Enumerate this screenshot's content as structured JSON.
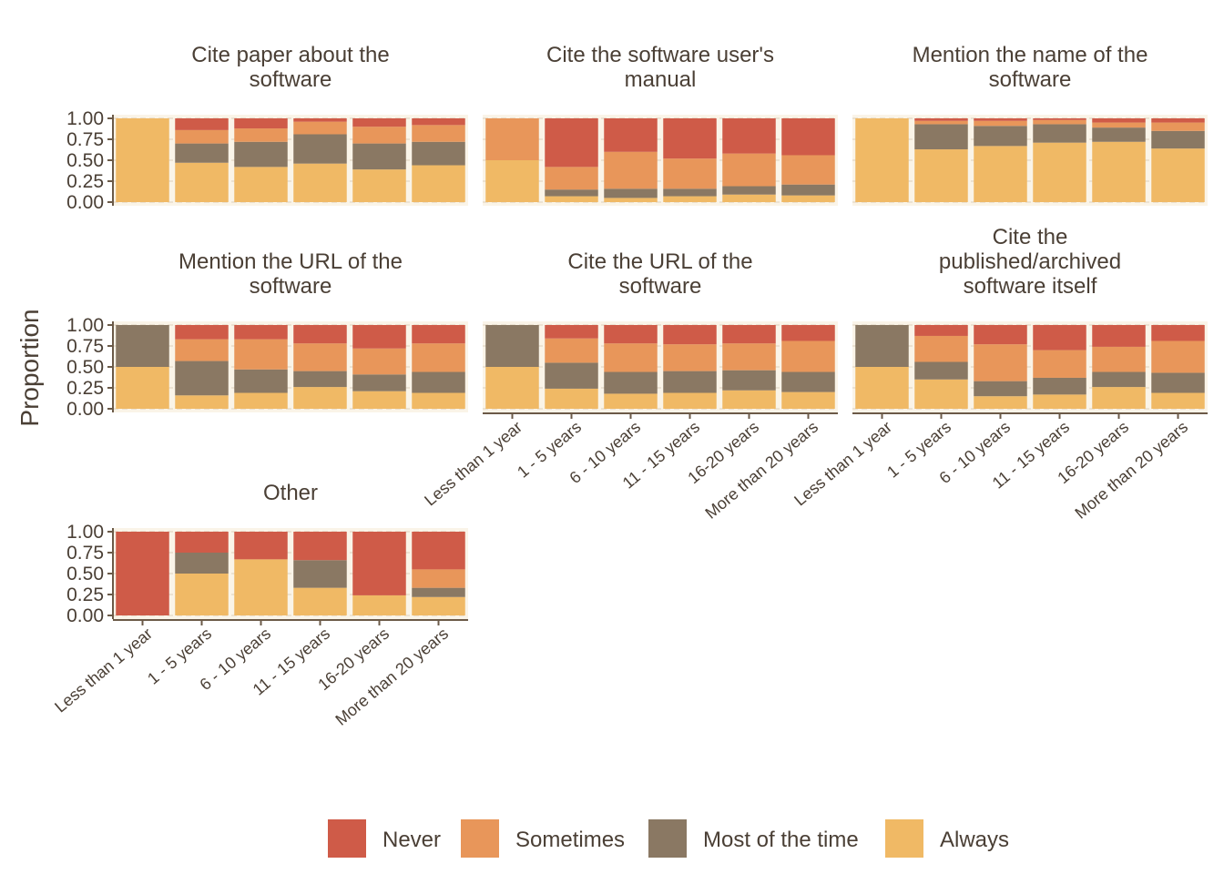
{
  "chart_data": {
    "type": "bar",
    "stacked": true,
    "ylabel": "Proportion",
    "ylim": [
      0,
      1
    ],
    "yticks": [
      "1.00",
      "0.75",
      "0.50",
      "0.25",
      "0.00"
    ],
    "categories": [
      "Less than 1 year",
      "1 - 5 years",
      "6 - 10 years",
      "11 - 15 years",
      "16-20 years",
      "More than 20 years"
    ],
    "legend": {
      "placement": "bottom",
      "entries": [
        {
          "name": "Never",
          "color": "#cf5b48"
        },
        {
          "name": "Sometimes",
          "color": "#e8965a"
        },
        {
          "name": "Most of the time",
          "color": "#8a7863"
        },
        {
          "name": "Always",
          "color": "#f0b965"
        }
      ]
    },
    "facets": [
      {
        "title_lines": [
          "Cite paper about the",
          "software"
        ],
        "stacks": [
          [
            1.0,
            0,
            0,
            0
          ],
          [
            0.47,
            0.23,
            0.16,
            0.14
          ],
          [
            0.42,
            0.3,
            0.16,
            0.12
          ],
          [
            0.46,
            0.35,
            0.15,
            0.04
          ],
          [
            0.39,
            0.31,
            0.2,
            0.1
          ],
          [
            0.44,
            0.28,
            0.2,
            0.08
          ]
        ]
      },
      {
        "title_lines": [
          "Cite the software user's",
          "manual"
        ],
        "stacks": [
          [
            0.5,
            0,
            0.5,
            0
          ],
          [
            0.07,
            0.08,
            0.27,
            0.58
          ],
          [
            0.05,
            0.11,
            0.44,
            0.4
          ],
          [
            0.07,
            0.09,
            0.36,
            0.48
          ],
          [
            0.09,
            0.1,
            0.39,
            0.42
          ],
          [
            0.08,
            0.13,
            0.35,
            0.44
          ]
        ]
      },
      {
        "title_lines": [
          "Mention the name of the",
          "software"
        ],
        "stacks": [
          [
            1.0,
            0,
            0,
            0
          ],
          [
            0.63,
            0.3,
            0.04,
            0.03
          ],
          [
            0.67,
            0.24,
            0.06,
            0.03
          ],
          [
            0.71,
            0.22,
            0.05,
            0.02
          ],
          [
            0.72,
            0.17,
            0.06,
            0.05
          ],
          [
            0.64,
            0.21,
            0.1,
            0.05
          ]
        ]
      },
      {
        "title_lines": [
          "Mention the URL of the",
          "software"
        ],
        "stacks": [
          [
            0.5,
            0.5,
            0,
            0
          ],
          [
            0.16,
            0.41,
            0.26,
            0.17
          ],
          [
            0.19,
            0.28,
            0.36,
            0.17
          ],
          [
            0.26,
            0.19,
            0.33,
            0.22
          ],
          [
            0.21,
            0.2,
            0.31,
            0.28
          ],
          [
            0.19,
            0.25,
            0.34,
            0.22
          ]
        ]
      },
      {
        "title_lines": [
          "Cite the URL of the",
          "software"
        ],
        "stacks": [
          [
            0.5,
            0.5,
            0,
            0
          ],
          [
            0.24,
            0.31,
            0.29,
            0.16
          ],
          [
            0.18,
            0.26,
            0.34,
            0.22
          ],
          [
            0.19,
            0.26,
            0.32,
            0.23
          ],
          [
            0.22,
            0.24,
            0.32,
            0.22
          ],
          [
            0.2,
            0.24,
            0.37,
            0.19
          ]
        ]
      },
      {
        "title_lines": [
          "Cite the",
          "published/archived",
          "software itself"
        ],
        "stacks": [
          [
            0.5,
            0.5,
            0,
            0
          ],
          [
            0.35,
            0.21,
            0.31,
            0.13
          ],
          [
            0.15,
            0.18,
            0.44,
            0.23
          ],
          [
            0.17,
            0.2,
            0.33,
            0.3
          ],
          [
            0.26,
            0.18,
            0.3,
            0.26
          ],
          [
            0.19,
            0.24,
            0.38,
            0.19
          ]
        ]
      },
      {
        "title_lines": [
          "Other"
        ],
        "stacks": [
          [
            0,
            0,
            0,
            1.0
          ],
          [
            0.5,
            0.25,
            0,
            0.25
          ],
          [
            0.67,
            0,
            0,
            0.33
          ],
          [
            0.33,
            0.33,
            0,
            0.34
          ],
          [
            0.24,
            0,
            0,
            0.76
          ],
          [
            0.22,
            0.11,
            0.22,
            0.45
          ]
        ]
      }
    ]
  }
}
